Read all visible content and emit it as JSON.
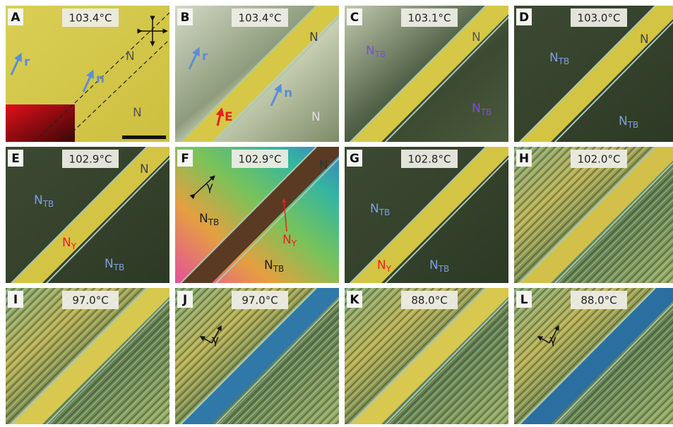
{
  "panels": [
    {
      "letter": "A",
      "temperature": "103.4°C",
      "annotations": [
        {
          "text": "r"
        },
        {
          "text": "n"
        },
        {
          "text": "N"
        },
        {
          "text": "N"
        }
      ]
    },
    {
      "letter": "B",
      "temperature": "103.4°C",
      "annotations": [
        {
          "text": "r"
        },
        {
          "text": "n"
        },
        {
          "text": "E"
        },
        {
          "text": "N"
        },
        {
          "text": "N"
        }
      ]
    },
    {
      "letter": "C",
      "temperature": "103.1°C",
      "annotations": [
        {
          "text": "N",
          "sub": "TB"
        },
        {
          "text": "N"
        },
        {
          "text": "N",
          "sub": "TB"
        }
      ]
    },
    {
      "letter": "D",
      "temperature": "103.0°C",
      "annotations": [
        {
          "text": "N",
          "sub": "TB"
        },
        {
          "text": "N"
        },
        {
          "text": "N",
          "sub": "TB"
        }
      ]
    },
    {
      "letter": "E",
      "temperature": "102.9°C",
      "annotations": [
        {
          "text": "N"
        },
        {
          "text": "N",
          "sub": "TB"
        },
        {
          "text": "N",
          "sub": "Y"
        },
        {
          "text": "N",
          "sub": "TB"
        }
      ]
    },
    {
      "letter": "F",
      "temperature": "102.9°C",
      "annotations": [
        {
          "text": "γ"
        },
        {
          "text": "N"
        },
        {
          "text": "N",
          "sub": "TB"
        },
        {
          "text": "N",
          "sub": "Y"
        },
        {
          "text": "N",
          "sub": "TB"
        }
      ]
    },
    {
      "letter": "G",
      "temperature": "102.8°C",
      "annotations": [
        {
          "text": "N",
          "sub": "TB"
        },
        {
          "text": "N",
          "sub": "Y"
        },
        {
          "text": "N",
          "sub": "TB"
        }
      ]
    },
    {
      "letter": "H",
      "temperature": "102.0°C",
      "annotations": []
    },
    {
      "letter": "I",
      "temperature": "97.0°C",
      "annotations": []
    },
    {
      "letter": "J",
      "temperature": "97.0°C",
      "annotations": [
        {
          "text": "γ"
        }
      ]
    },
    {
      "letter": "K",
      "temperature": "88.0°C",
      "annotations": []
    },
    {
      "letter": "L",
      "temperature": "88.0°C",
      "annotations": [
        {
          "text": "γ"
        }
      ]
    }
  ]
}
